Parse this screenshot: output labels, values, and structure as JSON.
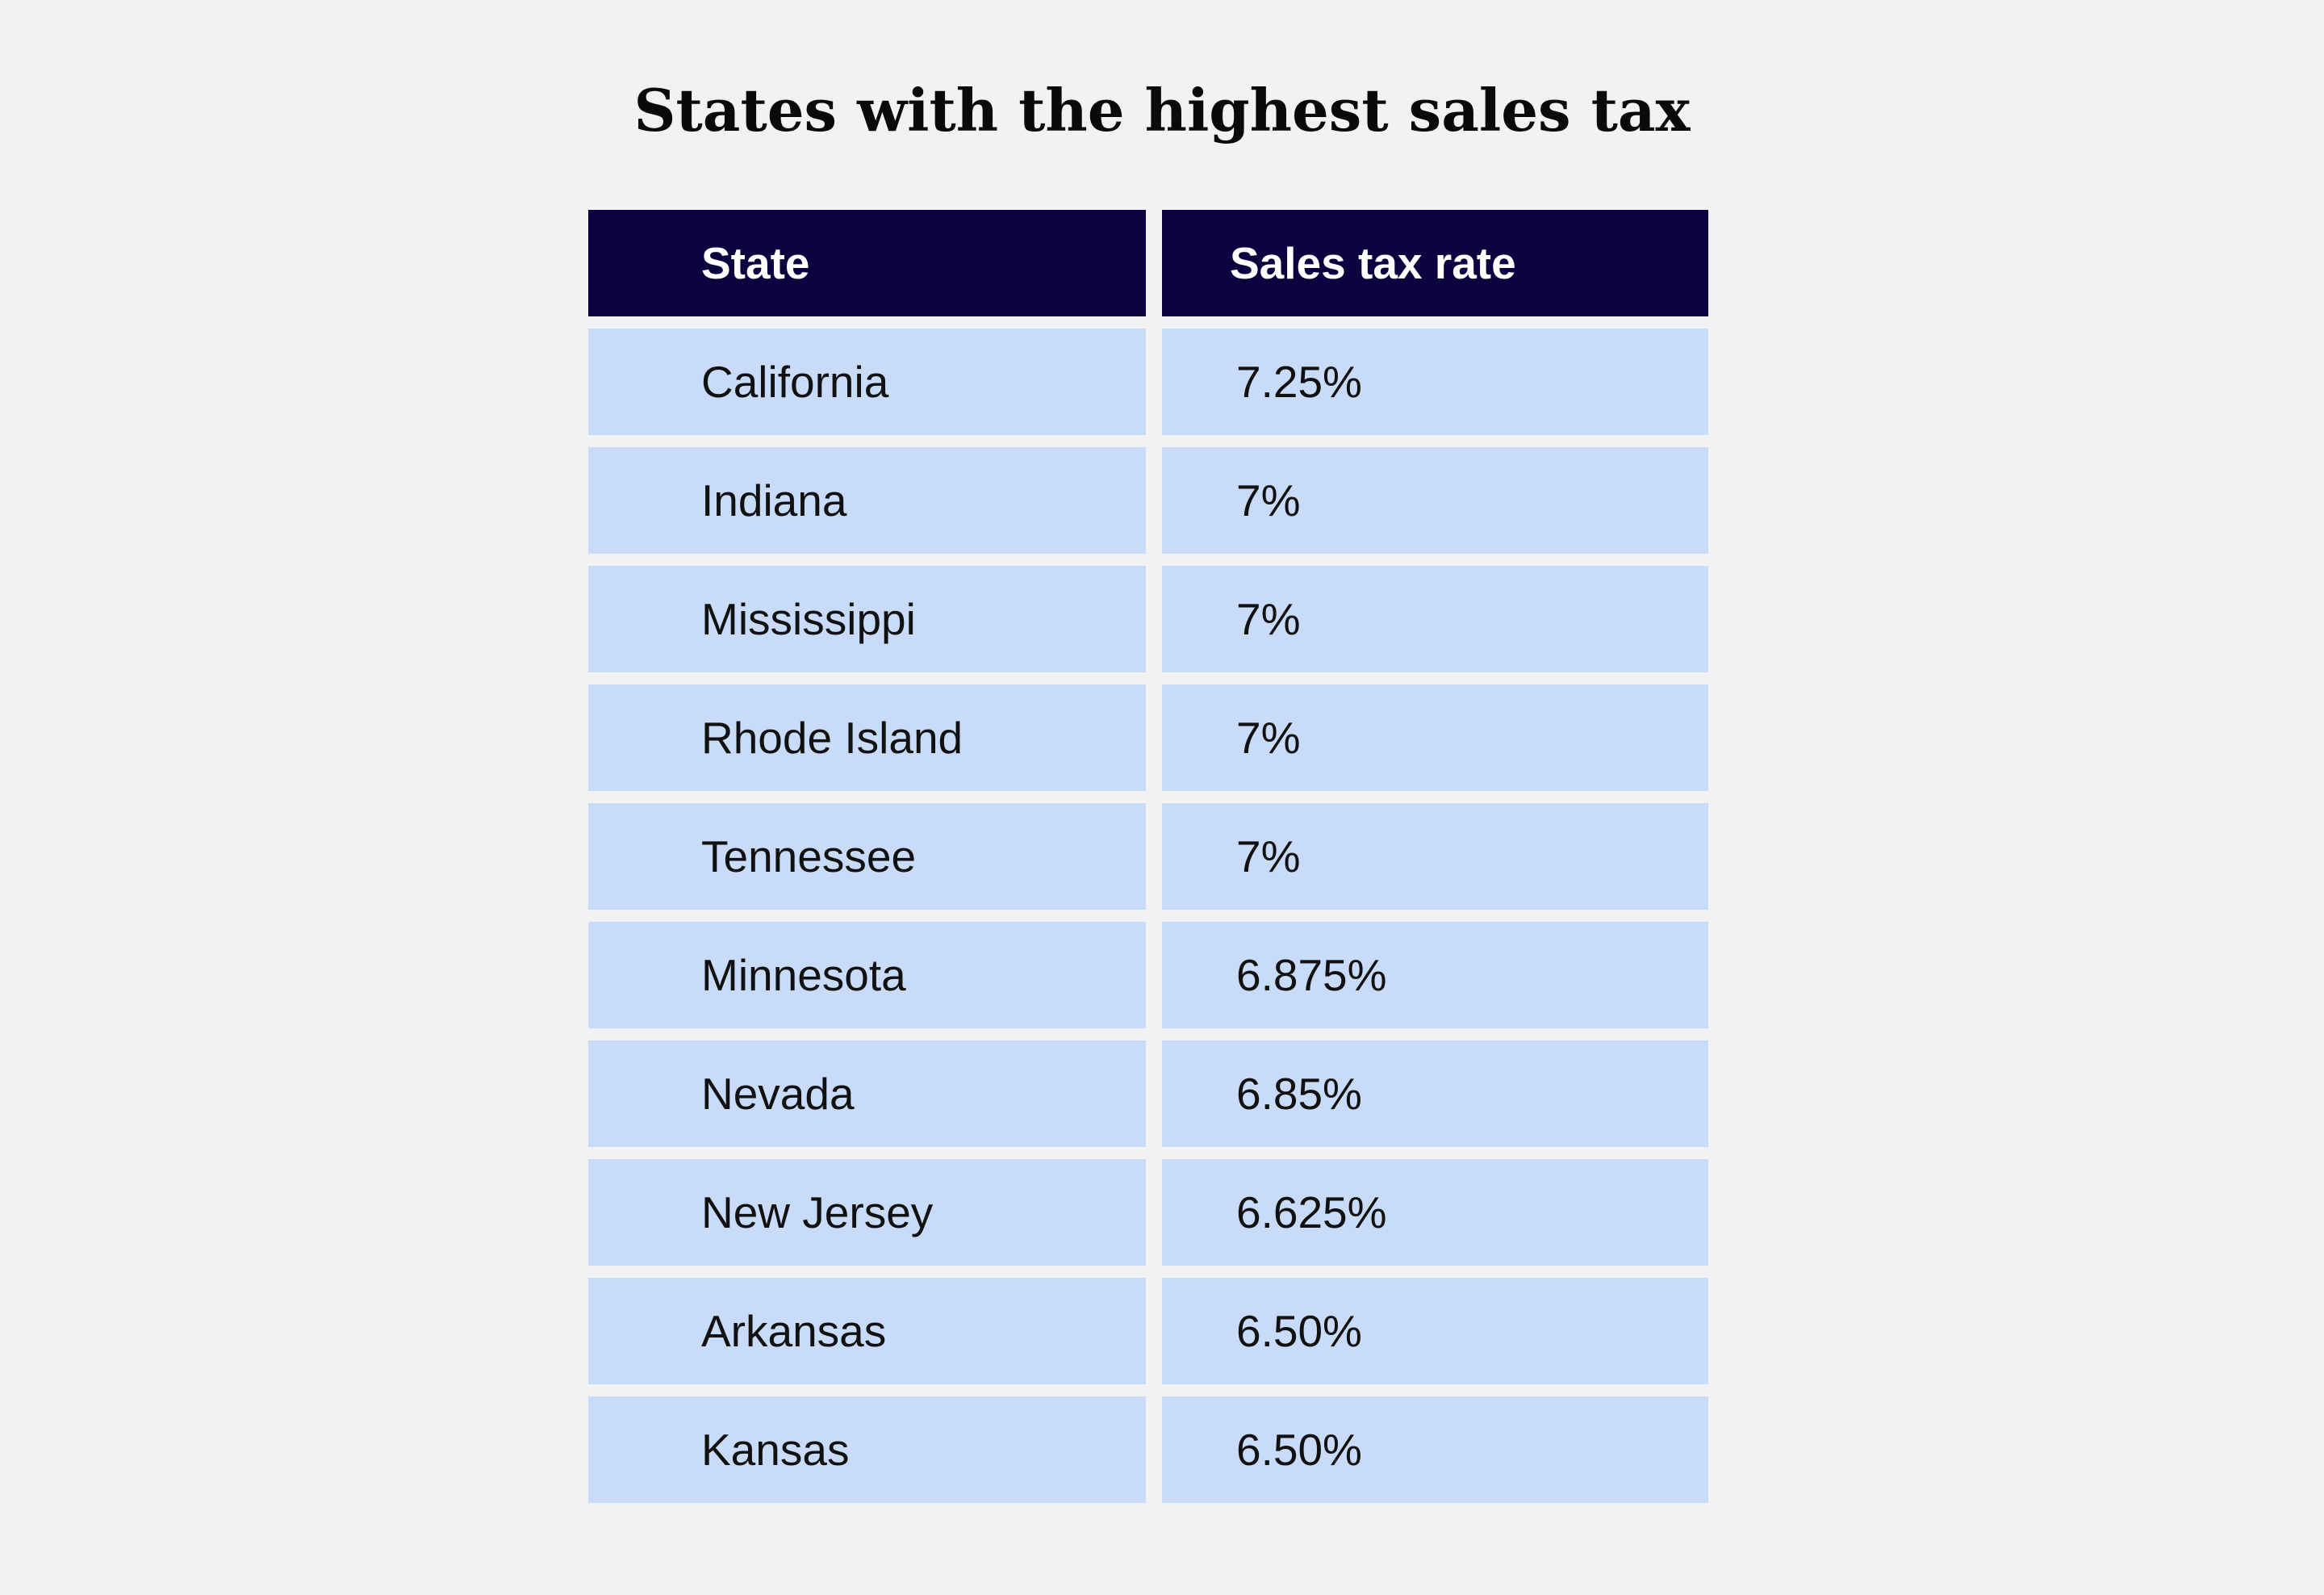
{
  "chart_data": {
    "type": "table",
    "title": "States with the highest sales tax",
    "columns": [
      "State",
      "Sales tax rate"
    ],
    "rows": [
      [
        "California",
        "7.25%"
      ],
      [
        "Indiana",
        "7%"
      ],
      [
        "Mississippi",
        "7%"
      ],
      [
        "Rhode Island",
        "7%"
      ],
      [
        "Tennessee",
        "7%"
      ],
      [
        "Minnesota",
        "6.875%"
      ],
      [
        "Nevada",
        "6.85%"
      ],
      [
        "New Jersey",
        "6.625%"
      ],
      [
        "Arkansas",
        "6.50%"
      ],
      [
        "Kansas",
        "6.50%"
      ]
    ],
    "colors": {
      "header_background": "#0b0340",
      "header_text": "#ffffff",
      "row_background": "#c8dbf8",
      "page_background": "#f2f2f2"
    }
  }
}
